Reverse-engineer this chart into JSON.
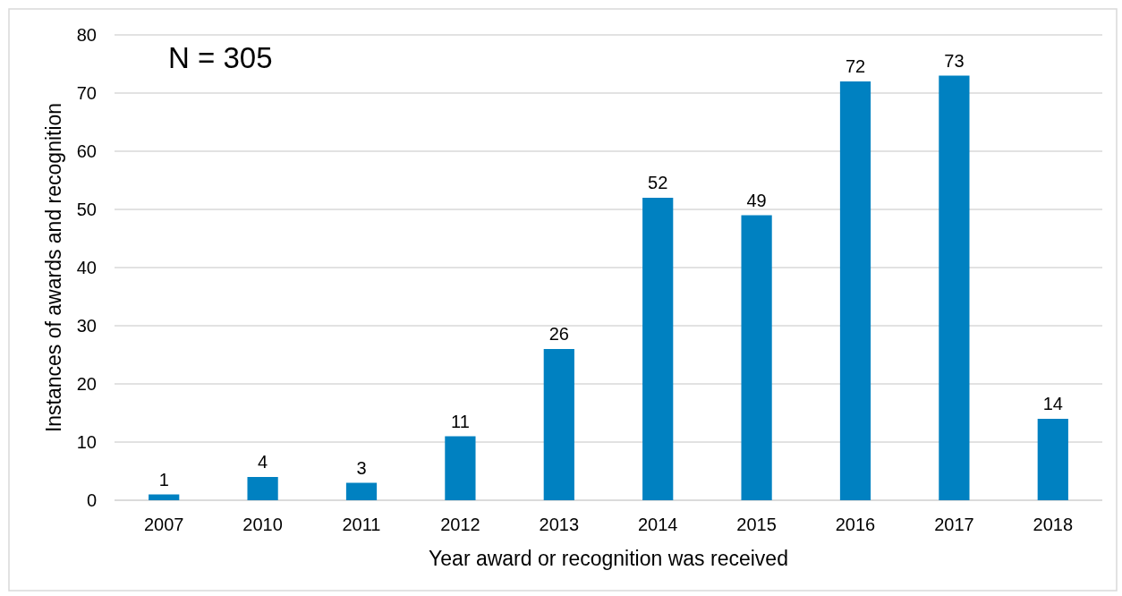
{
  "chart_data": {
    "type": "bar",
    "xlabel": "Year award or recognition was received",
    "ylabel": "Instances of awards and recognition",
    "categories": [
      "2007",
      "2010",
      "2011",
      "2012",
      "2013",
      "2014",
      "2015",
      "2016",
      "2017",
      "2018"
    ],
    "values": [
      1,
      4,
      3,
      11,
      26,
      52,
      49,
      72,
      73,
      14
    ],
    "color": "#0081c1",
    "ylim": [
      0,
      80
    ],
    "yticks": [
      0,
      10,
      20,
      30,
      40,
      50,
      60,
      70,
      80
    ],
    "grid": "y",
    "data_labels": true,
    "annotations": [
      "N = 305"
    ]
  }
}
